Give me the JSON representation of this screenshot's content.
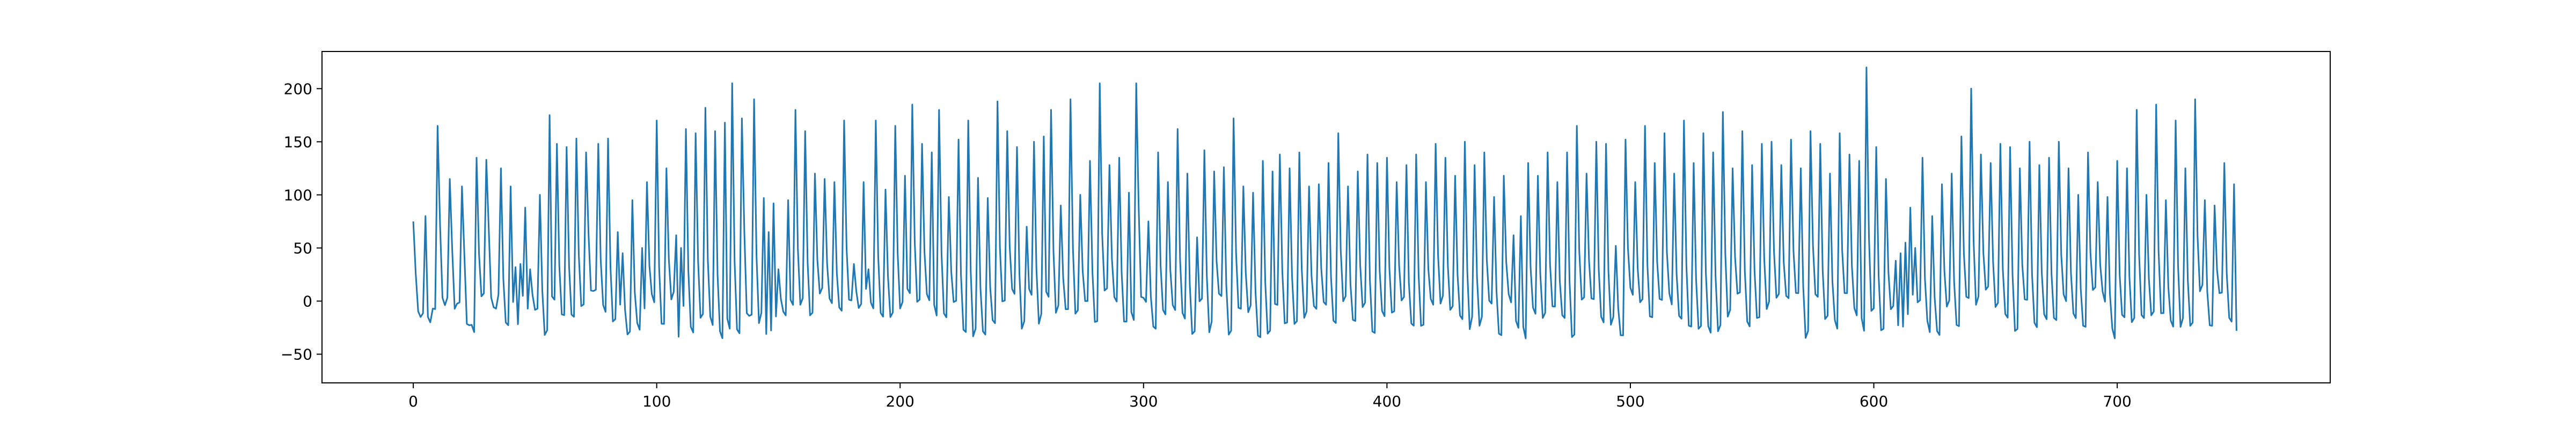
{
  "chart_data": {
    "type": "line",
    "title": "",
    "xlabel": "",
    "ylabel": "",
    "xlim": [
      -37.5,
      787.5
    ],
    "ylim": [
      -77,
      235
    ],
    "x_ticks": [
      0,
      100,
      200,
      300,
      400,
      500,
      600,
      700
    ],
    "y_ticks": [
      -50,
      0,
      50,
      100,
      150,
      200
    ],
    "grid": false,
    "legend": "none",
    "series": [
      {
        "color": "#1f77b4",
        "x_start": 0,
        "x_step": 1,
        "peaks": [
          [
            0,
            75
          ],
          [
            5,
            80
          ],
          [
            7,
            -20
          ],
          [
            10,
            165
          ],
          [
            15,
            115
          ],
          [
            20,
            108
          ],
          [
            26,
            135
          ],
          [
            30,
            133
          ],
          [
            36,
            125
          ],
          [
            40,
            108
          ],
          [
            42,
            32
          ],
          [
            44,
            35
          ],
          [
            46,
            88
          ],
          [
            48,
            30
          ],
          [
            52,
            100
          ],
          [
            56,
            175
          ],
          [
            59,
            148
          ],
          [
            63,
            145
          ],
          [
            67,
            153
          ],
          [
            71,
            140
          ],
          [
            76,
            148
          ],
          [
            80,
            153
          ],
          [
            84,
            65
          ],
          [
            86,
            45
          ],
          [
            90,
            95
          ],
          [
            94,
            50
          ],
          [
            96,
            112
          ],
          [
            100,
            170
          ],
          [
            104,
            125
          ],
          [
            108,
            62
          ],
          [
            110,
            50
          ],
          [
            112,
            162
          ],
          [
            116,
            158
          ],
          [
            120,
            182
          ],
          [
            124,
            160
          ],
          [
            128,
            168
          ],
          [
            131,
            205
          ],
          [
            135,
            172
          ],
          [
            140,
            190
          ],
          [
            144,
            97
          ],
          [
            146,
            65
          ],
          [
            148,
            92
          ],
          [
            150,
            30
          ],
          [
            154,
            95
          ],
          [
            157,
            180
          ],
          [
            161,
            160
          ],
          [
            165,
            120
          ],
          [
            169,
            115
          ],
          [
            173,
            112
          ],
          [
            177,
            170
          ],
          [
            181,
            35
          ],
          [
            185,
            112
          ],
          [
            187,
            30
          ],
          [
            190,
            170
          ],
          [
            194,
            105
          ],
          [
            198,
            165
          ],
          [
            202,
            118
          ],
          [
            205,
            185
          ],
          [
            209,
            148
          ],
          [
            213,
            140
          ],
          [
            216,
            180
          ],
          [
            220,
            98
          ],
          [
            224,
            152
          ],
          [
            228,
            170
          ],
          [
            232,
            116
          ],
          [
            236,
            97
          ],
          [
            240,
            188
          ],
          [
            244,
            160
          ],
          [
            248,
            145
          ],
          [
            252,
            70
          ],
          [
            255,
            150
          ],
          [
            259,
            155
          ],
          [
            262,
            180
          ],
          [
            266,
            90
          ],
          [
            270,
            190
          ],
          [
            274,
            100
          ],
          [
            278,
            132
          ],
          [
            282,
            205
          ],
          [
            286,
            128
          ],
          [
            290,
            135
          ],
          [
            294,
            102
          ],
          [
            297,
            205
          ],
          [
            302,
            75
          ],
          [
            306,
            140
          ],
          [
            310,
            112
          ],
          [
            314,
            162
          ],
          [
            318,
            120
          ],
          [
            322,
            60
          ],
          [
            325,
            142
          ],
          [
            329,
            122
          ],
          [
            333,
            126
          ],
          [
            337,
            172
          ],
          [
            341,
            108
          ],
          [
            345,
            102
          ],
          [
            349,
            132
          ],
          [
            353,
            122
          ],
          [
            356,
            138
          ],
          [
            360,
            125
          ],
          [
            364,
            140
          ],
          [
            368,
            108
          ],
          [
            372,
            110
          ],
          [
            376,
            130
          ],
          [
            380,
            158
          ],
          [
            384,
            108
          ],
          [
            388,
            122
          ],
          [
            392,
            138
          ],
          [
            396,
            130
          ],
          [
            400,
            135
          ],
          [
            404,
            112
          ],
          [
            408,
            128
          ],
          [
            412,
            138
          ],
          [
            416,
            112
          ],
          [
            420,
            148
          ],
          [
            424,
            135
          ],
          [
            428,
            118
          ],
          [
            432,
            150
          ],
          [
            436,
            128
          ],
          [
            440,
            140
          ],
          [
            444,
            98
          ],
          [
            448,
            118
          ],
          [
            452,
            62
          ],
          [
            455,
            80
          ],
          [
            458,
            130
          ],
          [
            462,
            118
          ],
          [
            466,
            140
          ],
          [
            470,
            112
          ],
          [
            474,
            140
          ],
          [
            478,
            165
          ],
          [
            482,
            120
          ],
          [
            486,
            150
          ],
          [
            490,
            148
          ],
          [
            494,
            52
          ],
          [
            498,
            152
          ],
          [
            502,
            112
          ],
          [
            506,
            165
          ],
          [
            510,
            130
          ],
          [
            514,
            158
          ],
          [
            518,
            120
          ],
          [
            522,
            170
          ],
          [
            526,
            130
          ],
          [
            530,
            158
          ],
          [
            534,
            140
          ],
          [
            538,
            178
          ],
          [
            542,
            125
          ],
          [
            546,
            160
          ],
          [
            550,
            128
          ],
          [
            554,
            148
          ],
          [
            558,
            150
          ],
          [
            562,
            128
          ],
          [
            566,
            152
          ],
          [
            570,
            125
          ],
          [
            574,
            160
          ],
          [
            578,
            148
          ],
          [
            582,
            120
          ],
          [
            586,
            158
          ],
          [
            590,
            138
          ],
          [
            594,
            132
          ],
          [
            597,
            220
          ],
          [
            601,
            145
          ],
          [
            605,
            115
          ],
          [
            609,
            38
          ],
          [
            611,
            45
          ],
          [
            613,
            55
          ],
          [
            615,
            88
          ],
          [
            617,
            50
          ],
          [
            620,
            135
          ],
          [
            624,
            80
          ],
          [
            628,
            110
          ],
          [
            632,
            120
          ],
          [
            636,
            155
          ],
          [
            640,
            200
          ],
          [
            644,
            138
          ],
          [
            648,
            130
          ],
          [
            652,
            148
          ],
          [
            656,
            145
          ],
          [
            660,
            125
          ],
          [
            664,
            150
          ],
          [
            668,
            128
          ],
          [
            672,
            135
          ],
          [
            676,
            150
          ],
          [
            680,
            125
          ],
          [
            684,
            100
          ],
          [
            688,
            140
          ],
          [
            692,
            112
          ],
          [
            696,
            98
          ],
          [
            700,
            132
          ],
          [
            704,
            125
          ],
          [
            708,
            180
          ],
          [
            712,
            100
          ],
          [
            716,
            185
          ],
          [
            720,
            95
          ],
          [
            724,
            170
          ],
          [
            728,
            125
          ],
          [
            732,
            190
          ],
          [
            736,
            95
          ],
          [
            740,
            90
          ],
          [
            744,
            130
          ],
          [
            748,
            110
          ]
        ]
      }
    ]
  }
}
